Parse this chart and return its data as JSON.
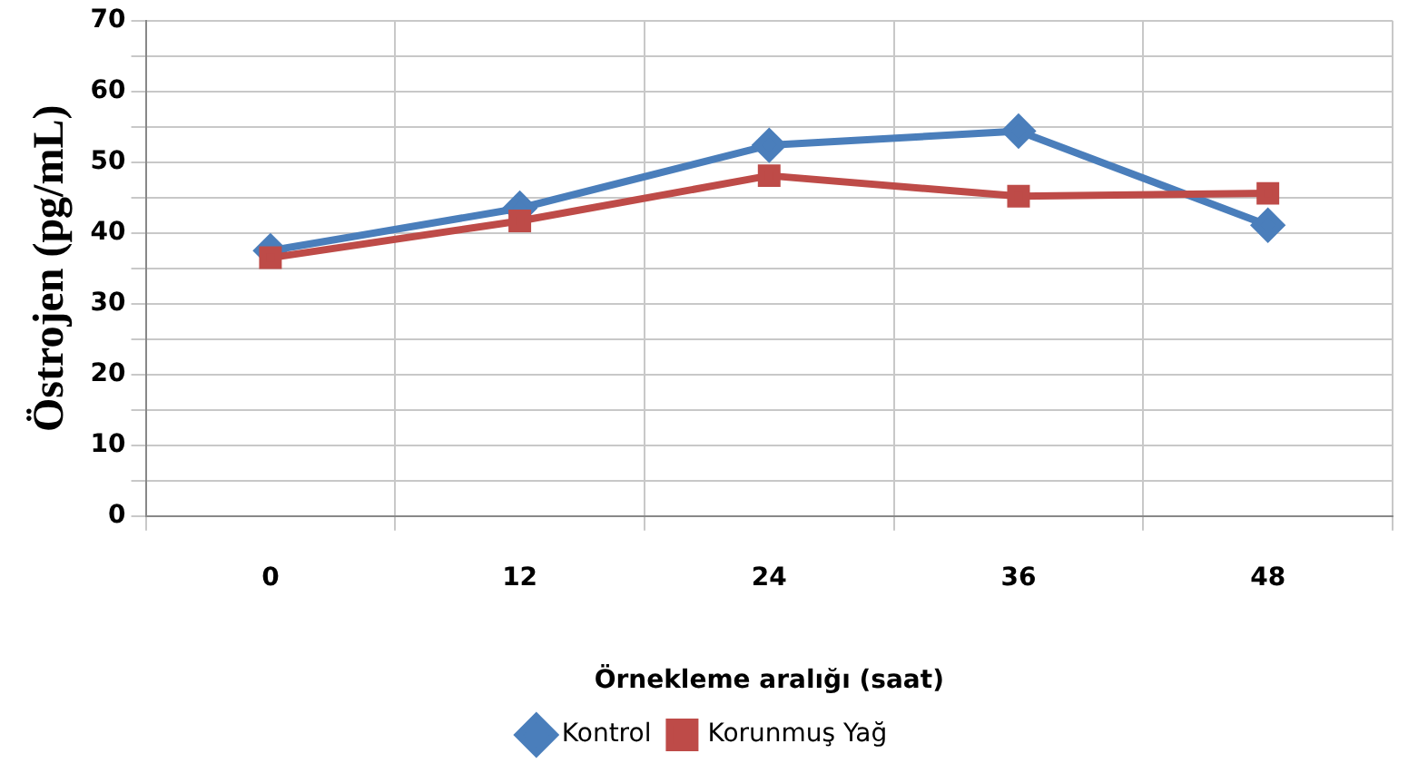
{
  "chart_data": {
    "type": "line",
    "ylabel": "Östrojen (pg/mL)",
    "xlabel": "Örnekleme aralığı (saat)",
    "categories": [
      "0",
      "12",
      "24",
      "36",
      "48"
    ],
    "series": [
      {
        "name": "Kontrol",
        "color": "#4a7ebb",
        "marker": "diamond",
        "values": [
          37.5,
          43.5,
          52.4,
          54.4,
          41.1
        ]
      },
      {
        "name": "Korunmuş Yağ",
        "color": "#be4b48",
        "marker": "square",
        "values": [
          36.5,
          41.7,
          48.1,
          45.2,
          45.6
        ]
      }
    ],
    "ylim": [
      0,
      70
    ],
    "yticks": [
      0,
      {
        "value": 5,
        "label": null
      },
      10,
      {
        "value": 15,
        "label": null
      },
      20,
      {
        "value": 25,
        "label": null
      },
      30,
      {
        "value": 35,
        "label": null
      },
      40,
      {
        "value": 45,
        "label": null
      },
      50,
      {
        "value": 55,
        "label": null
      },
      60,
      {
        "value": 65,
        "label": null
      },
      70
    ],
    "grid": true,
    "legend": "bottom",
    "line_style": "solid"
  }
}
